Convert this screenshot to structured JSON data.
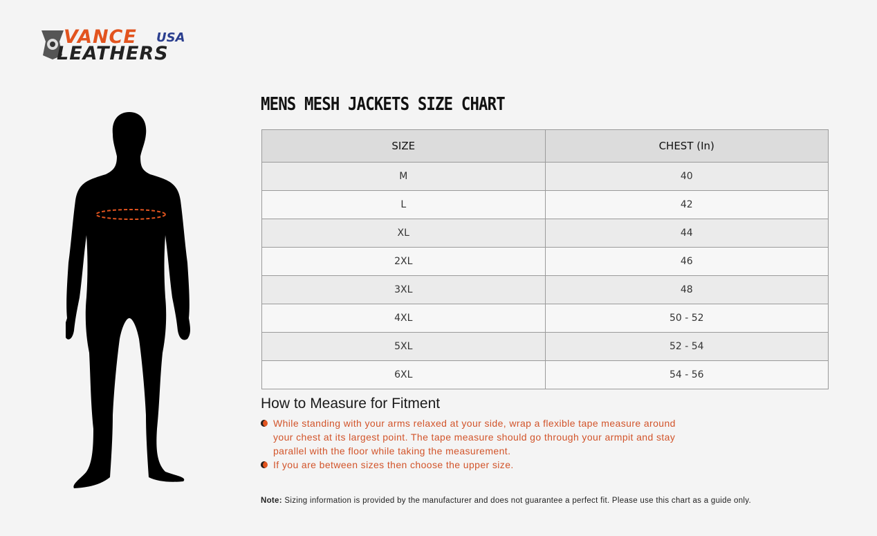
{
  "brand": {
    "line1": "VANCE",
    "line2": "LEATHERS",
    "suffix": "USA"
  },
  "title": "MENS MESH JACKETS SIZE CHART",
  "table": {
    "headers": [
      "SIZE",
      "CHEST (In)"
    ],
    "rows": [
      [
        "M",
        "40"
      ],
      [
        "L",
        "42"
      ],
      [
        "XL",
        "44"
      ],
      [
        "2XL",
        "46"
      ],
      [
        "3XL",
        "48"
      ],
      [
        "4XL",
        "50 - 52"
      ],
      [
        "5XL",
        "52 - 54"
      ],
      [
        "6XL",
        "54 - 56"
      ]
    ]
  },
  "measure": {
    "heading": "How to Measure for Fitment",
    "items": [
      "While standing with your arms relaxed at your side, wrap a flexible tape measure around your chest at its largest point. The tape measure should go through your armpit and stay parallel with the floor while taking the measurement.",
      "If you are between sizes then choose the upper size."
    ]
  },
  "note": {
    "label": "Note:",
    "text": " Sizing information is provided by the manufacturer and does not guarantee a perfect fit. Please use this chart as a guide only."
  },
  "colors": {
    "accent": "#e2541f",
    "background": "#f4f4f4",
    "header": "#dcdcdc"
  }
}
